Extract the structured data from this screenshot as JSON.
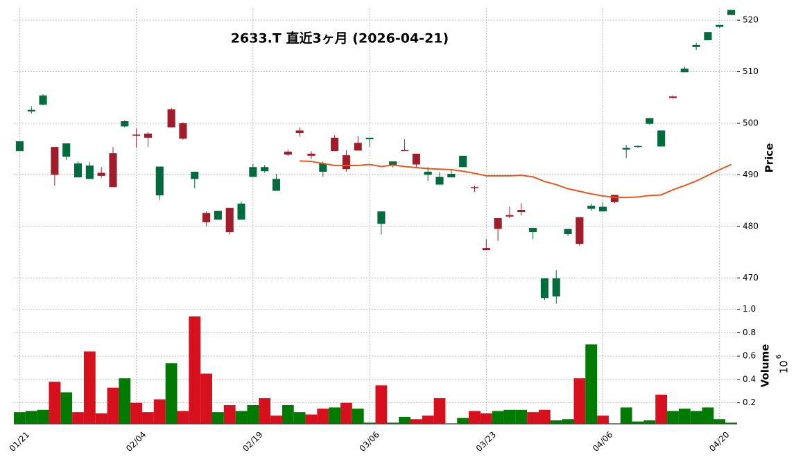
{
  "chart_data": [
    {
      "type": "candlestick",
      "title": "2633.T  直近3ヶ月  (2026-04-21)",
      "ylabel": "Price",
      "categories": [
        "01/21",
        null,
        null,
        null,
        null,
        null,
        null,
        null,
        null,
        null,
        "02/04",
        null,
        null,
        null,
        null,
        null,
        null,
        null,
        null,
        null,
        "02/19",
        null,
        null,
        null,
        null,
        null,
        null,
        null,
        null,
        null,
        "03/06",
        null,
        null,
        null,
        null,
        null,
        null,
        null,
        null,
        null,
        "03/23",
        null,
        null,
        null,
        null,
        null,
        null,
        null,
        null,
        null,
        "04/06",
        null,
        null,
        null,
        null,
        null,
        null,
        null,
        null,
        null,
        "04/20",
        null
      ],
      "open": [
        494.6,
        502.3,
        503.6,
        495.4,
        493.5,
        489.5,
        489.2,
        490.4,
        494.2,
        499.4,
        497.8,
        498.0,
        486.0,
        502.7,
        500.0,
        489.2,
        482.6,
        481.3,
        483.6,
        481.3,
        489.6,
        490.7,
        486.9,
        494.5,
        498.6,
        494.1,
        490.6,
        497.2,
        493.8,
        496.2,
        496.9,
        480.5,
        491.8,
        494.8,
        494.1,
        490.0,
        488.1,
        489.5,
        491.5,
        487.6,
        475.8,
        481.6,
        482.2,
        483.2,
        478.9,
        466.1,
        466.4,
        478.5,
        481.8,
        483.4,
        482.9,
        486.1,
        494.9,
        495.4,
        499.9,
        495.5,
        505.2,
        509.9,
        514.8,
        516.1,
        518.7,
        521.0
      ],
      "high": [
        496.5,
        503.3,
        505.6,
        495.4,
        496.1,
        492.6,
        492.5,
        491.5,
        495.4,
        500.6,
        499.0,
        498.3,
        491.6,
        503.0,
        500.2,
        490.6,
        482.9,
        483.0,
        483.6,
        484.8,
        492.1,
        491.9,
        490.2,
        494.9,
        499.2,
        494.6,
        492.6,
        497.7,
        494.8,
        497.5,
        497.2,
        482.9,
        492.6,
        496.9,
        494.1,
        491.5,
        490.5,
        491.0,
        493.7,
        487.9,
        477.5,
        481.6,
        483.8,
        484.5,
        479.7,
        469.9,
        471.5,
        479.5,
        481.8,
        484.4,
        484.7,
        486.1,
        495.8,
        495.7,
        501.0,
        498.6,
        505.4,
        511.0,
        515.6,
        517.7,
        519.1,
        522.0
      ],
      "low": [
        494.6,
        501.9,
        503.5,
        487.9,
        492.9,
        489.5,
        489.2,
        489.4,
        487.6,
        499.2,
        495.3,
        495.4,
        485.1,
        499.2,
        496.8,
        487.4,
        480.0,
        481.3,
        478.4,
        481.3,
        489.6,
        490.4,
        486.9,
        493.6,
        497.4,
        493.1,
        489.6,
        494.6,
        490.6,
        494.7,
        495.4,
        478.4,
        491.4,
        494.6,
        491.5,
        488.8,
        488.1,
        489.5,
        491.5,
        486.7,
        475.4,
        477.2,
        481.6,
        482.1,
        477.5,
        465.7,
        465.0,
        478.1,
        476.2,
        483.0,
        482.9,
        484.5,
        493.3,
        495.2,
        499.7,
        495.5,
        504.8,
        509.9,
        514.2,
        516.1,
        518.5,
        521.0
      ],
      "close": [
        496.5,
        502.6,
        505.4,
        490.0,
        496.1,
        492.2,
        491.8,
        489.8,
        487.6,
        500.4,
        497.6,
        497.2,
        491.6,
        499.2,
        497.0,
        490.6,
        480.8,
        483.0,
        478.9,
        484.4,
        491.5,
        491.5,
        489.2,
        493.9,
        498.1,
        493.7,
        492.2,
        494.6,
        491.1,
        494.7,
        497.2,
        482.9,
        492.6,
        494.7,
        492.0,
        490.6,
        489.6,
        490.2,
        493.7,
        487.4,
        475.4,
        479.5,
        481.9,
        482.8,
        479.7,
        469.9,
        469.9,
        479.5,
        476.6,
        484.0,
        483.8,
        484.7,
        495.2,
        495.6,
        501.0,
        498.6,
        504.9,
        510.6,
        515.2,
        517.7,
        519.1,
        522.0
      ],
      "up_color": "#006b3c",
      "down_color": "#a11d2b",
      "ma": {
        "color": "#e8581c",
        "values": [
          null,
          null,
          null,
          null,
          null,
          null,
          null,
          null,
          null,
          null,
          null,
          null,
          null,
          null,
          null,
          null,
          null,
          null,
          null,
          null,
          null,
          null,
          null,
          null,
          492.7,
          492.6,
          492.2,
          491.8,
          491.8,
          491.8,
          492.0,
          491.6,
          491.9,
          491.6,
          491.4,
          491.2,
          491.1,
          491.0,
          490.7,
          490.3,
          489.8,
          489.8,
          489.8,
          489.9,
          489.6,
          488.7,
          488.1,
          487.3,
          486.8,
          486.3,
          485.9,
          485.6,
          485.6,
          485.7,
          486.0,
          486.1,
          487.1,
          487.9,
          488.8,
          489.9,
          491.0,
          492.0
        ]
      },
      "ylim": [
        464.8,
        522.3
      ],
      "yticks": [
        470,
        480,
        490,
        500,
        510,
        520
      ],
      "grid": true
    },
    {
      "type": "bar",
      "ylabel": "Volume",
      "offset_base": "10",
      "offset_exponent": "6",
      "values": [
        0.12,
        0.13,
        0.14,
        0.38,
        0.29,
        0.12,
        0.64,
        0.11,
        0.33,
        0.41,
        0.2,
        0.12,
        0.23,
        0.54,
        0.13,
        0.94,
        0.45,
        0.12,
        0.18,
        0.13,
        0.18,
        0.24,
        0.09,
        0.18,
        0.12,
        0.1,
        0.15,
        0.16,
        0.2,
        0.15,
        0.03,
        0.35,
        0.03,
        0.08,
        0.06,
        0.09,
        0.24,
        0.02,
        0.07,
        0.13,
        0.11,
        0.13,
        0.14,
        0.14,
        0.12,
        0.14,
        0.05,
        0.06,
        0.41,
        0.7,
        0.09,
        0.02,
        0.16,
        0.04,
        0.05,
        0.27,
        0.13,
        0.15,
        0.13,
        0.16,
        0.06,
        0.03
      ],
      "colors": [
        "#007a00",
        "#007a00",
        "#007a00",
        "#d7101e",
        "#007a00",
        "#d7101e",
        "#d7101e",
        "#d7101e",
        "#d7101e",
        "#007a00",
        "#d7101e",
        "#d7101e",
        "#d7101e",
        "#007a00",
        "#d7101e",
        "#d7101e",
        "#d7101e",
        "#007a00",
        "#d7101e",
        "#007a00",
        "#007a00",
        "#d7101e",
        "#d7101e",
        "#007a00",
        "#007a00",
        "#d7101e",
        "#d7101e",
        "#007a00",
        "#d7101e",
        "#007a00",
        "#007a00",
        "#d7101e",
        "#007a00",
        "#007a00",
        "#d7101e",
        "#d7101e",
        "#d7101e",
        "#007a00",
        "#007a00",
        "#d7101e",
        "#d7101e",
        "#007a00",
        "#007a00",
        "#007a00",
        "#d7101e",
        "#d7101e",
        "#007a00",
        "#007a00",
        "#d7101e",
        "#007a00",
        "#d7101e",
        "#007a00",
        "#007a00",
        "#007a00",
        "#007a00",
        "#d7101e",
        "#007a00",
        "#007a00",
        "#007a00",
        "#007a00",
        "#007a00",
        "#007a00"
      ],
      "ylim": [
        0.02,
        1.04
      ],
      "yticks": [
        0.2,
        0.4,
        0.6,
        0.8,
        {
          "value": 1,
          "label": "1.0"
        }
      ],
      "grid": true
    }
  ]
}
